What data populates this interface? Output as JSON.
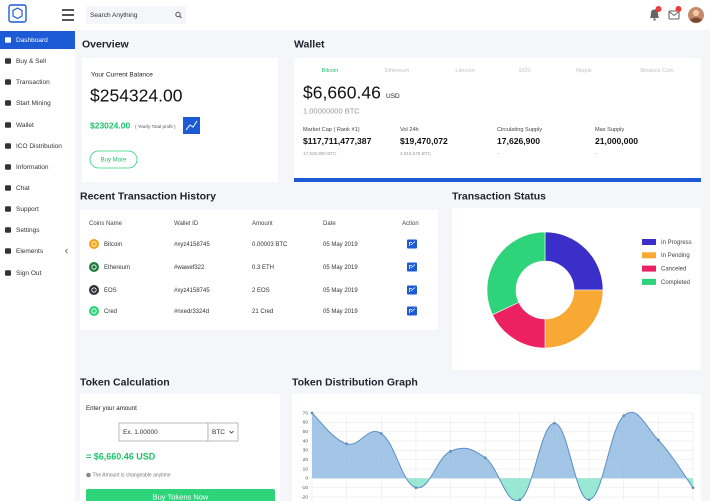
{
  "header": {
    "search_placeholder": "Search Anything"
  },
  "sidebar": {
    "items": [
      "Dashboard",
      "Buy & Sell",
      "Transaction",
      "Start Mining",
      "Wallet",
      "ICO Distribution",
      "Information",
      "Chat",
      "Support",
      "Settings",
      "Elements",
      "Sign Out"
    ],
    "active": 0
  },
  "overview": {
    "title": "Overview",
    "balance_label": "Your Current Balance",
    "balance": "$254324.00",
    "profit": "$23024.00",
    "profit_note": "( Yearly Total profit )",
    "button": "Buy More"
  },
  "wallet": {
    "title": "Wallet",
    "tabs": [
      "Bitcoin",
      "Ethereum",
      "Litecoin",
      "EOS",
      "Ripple",
      "Binance Coin"
    ],
    "active_tab": 0,
    "price": "$6,660.46",
    "currency": "USD",
    "amount": "1.00000000 BTC",
    "stats": [
      {
        "label": "Market Cap ( Rank #1)",
        "value": "$117,711,477,387",
        "sub": "17,626,900 BTC"
      },
      {
        "label": "Vol 24h",
        "value": "$19,470,072",
        "sub": "2,915,578 BTC"
      },
      {
        "label": "Circulating Supply",
        "value": "17,626,900",
        "sub": "--"
      },
      {
        "label": "Max Supply",
        "value": "21,000,000",
        "sub": "--"
      }
    ]
  },
  "transactions": {
    "title": "Recent Transaction History",
    "columns": [
      "Coins Name",
      "Wallet ID",
      "Amount",
      "Date",
      "Action"
    ],
    "rows": [
      {
        "coin": "Bitcoin",
        "wallet_id": "#xyz4158745",
        "amount": "0.00003 BTC",
        "date": "05 May 2019",
        "color": "#f7a21b"
      },
      {
        "coin": "Ethereum",
        "wallet_id": "#wawef322",
        "amount": "0.3 ETH",
        "date": "05 May 2019",
        "color": "#1f7a3c"
      },
      {
        "coin": "EOS",
        "wallet_id": "#xyz4158745",
        "amount": "2 EOS",
        "date": "05 May 2019",
        "color": "#2f2f3a"
      },
      {
        "coin": "Cred",
        "wallet_id": "#nxedr3324d",
        "amount": "21 Cred",
        "date": "05 May 2019",
        "color": "#2ed47a"
      }
    ]
  },
  "token_calculation": {
    "title": "Token Calculation",
    "label": "Enter your amount",
    "placeholder": "Ex. 1.00000",
    "unit": "BTC",
    "result": "= $6,660.46 USD",
    "note": "The Amount is changeable anytime",
    "button": "Buy Tokens Now"
  },
  "chart_data": [
    {
      "type": "doughnut",
      "title": "Transaction Status",
      "categories": [
        "In Progress",
        "In Pending",
        "Canceled",
        "Completed"
      ],
      "values": [
        25,
        25,
        18,
        32
      ],
      "colors": [
        "#3a2fc9",
        "#f8a933",
        "#ec2163",
        "#2ed47a"
      ],
      "legend": "right"
    },
    {
      "type": "line",
      "title": "Token Distribution Graph",
      "values": [
        70,
        37,
        48,
        -10,
        29,
        22,
        -23,
        59,
        -23,
        67,
        41,
        -10
      ],
      "color": "#5b8fc7",
      "fill": true,
      "fill_colors": [
        "#94bce2",
        "#86e4cc"
      ],
      "smooth": true,
      "ylim": [
        -20,
        70
      ],
      "yticks": [
        70,
        60,
        50,
        40,
        30,
        20,
        10,
        0,
        -10,
        -20
      ],
      "grid": true
    }
  ]
}
